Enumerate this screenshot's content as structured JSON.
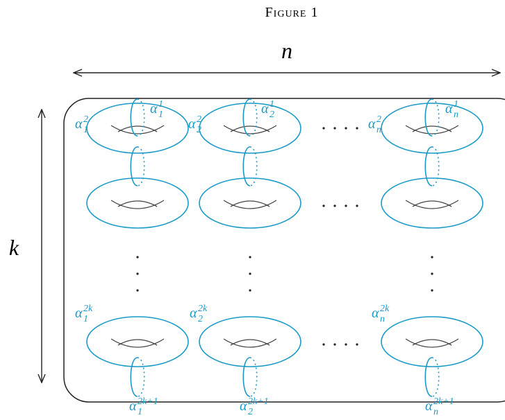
{
  "title": "Figure 1",
  "dimension_labels": {
    "n": "n",
    "k": "k"
  },
  "labels": [
    {
      "base": "α",
      "sub": "1",
      "sup": "2"
    },
    {
      "base": "α",
      "sub": "1",
      "sup": "1"
    },
    {
      "base": "α",
      "sub": "2",
      "sup": "2"
    },
    {
      "base": "α",
      "sub": "2",
      "sup": "1"
    },
    {
      "base": "α",
      "sub": "n",
      "sup": "2"
    },
    {
      "base": "α",
      "sub": "n",
      "sup": "1"
    },
    {
      "base": "α",
      "sub": "1",
      "sup": "2k"
    },
    {
      "base": "α",
      "sub": "2",
      "sup": "2k"
    },
    {
      "base": "α",
      "sub": "n",
      "sup": "2k"
    },
    {
      "base": "α",
      "sub": "1",
      "sup": "2k+1"
    },
    {
      "base": "α",
      "sub": "2",
      "sup": "2k+1"
    },
    {
      "base": "α",
      "sub": "n",
      "sup": "2k+1"
    }
  ]
}
